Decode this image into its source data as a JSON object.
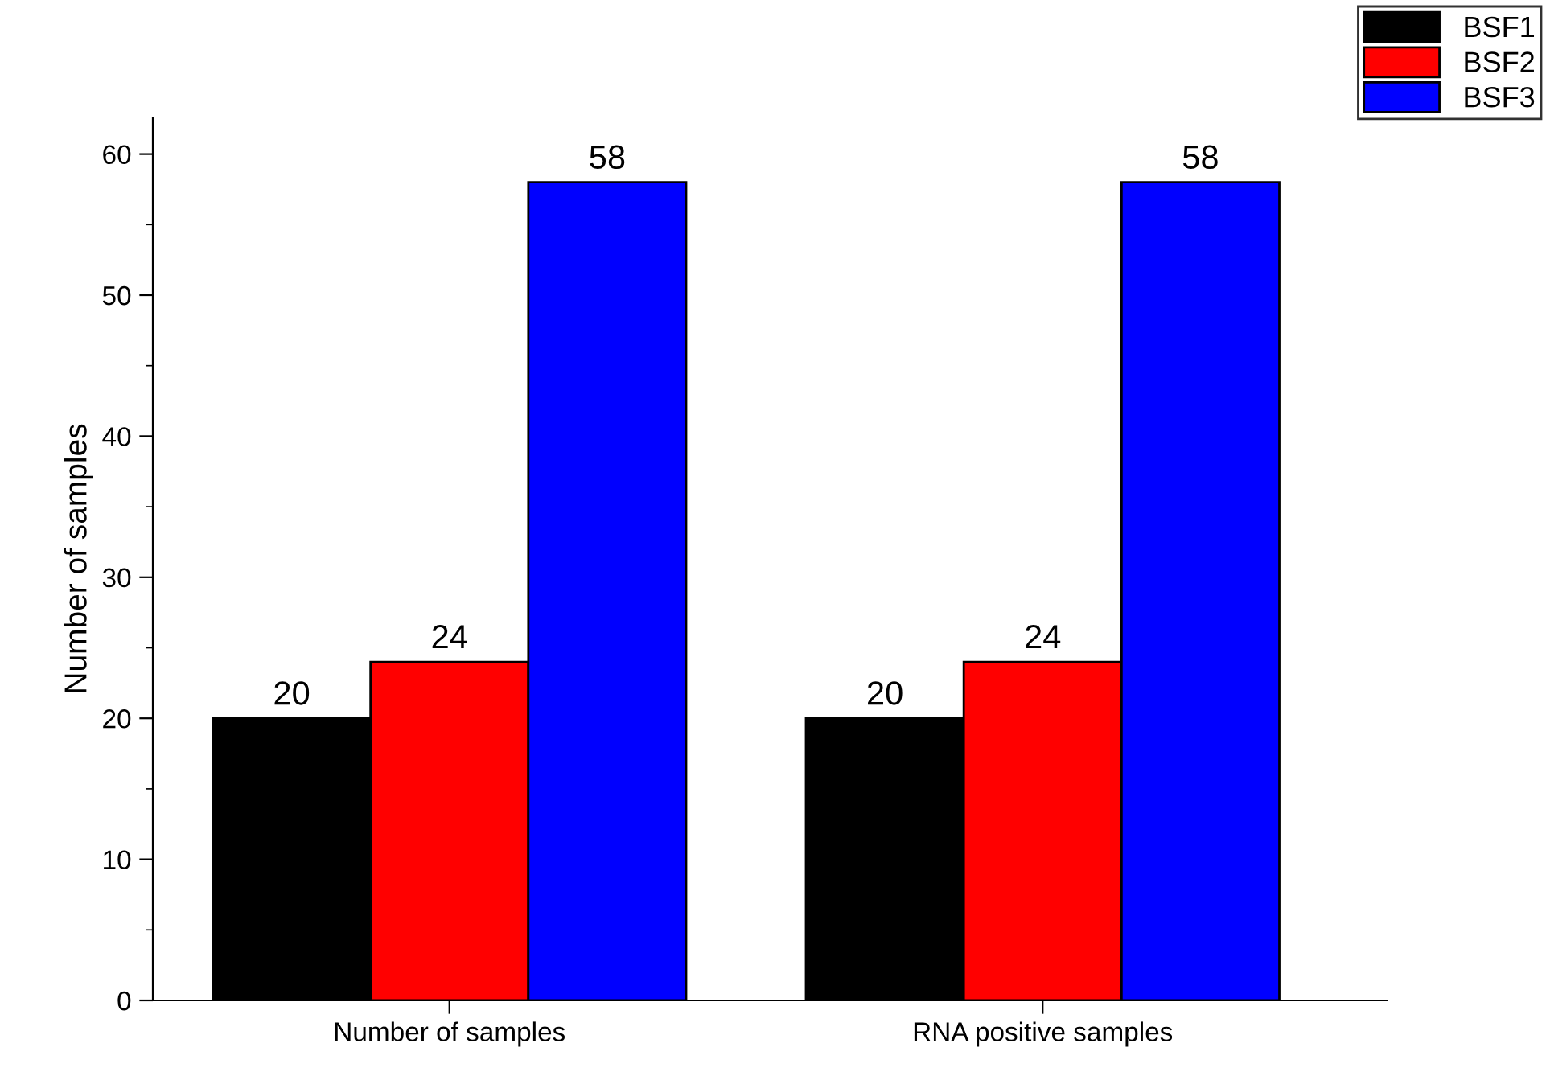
{
  "chart_data": {
    "type": "bar",
    "ylabel": "Number of samples",
    "categories": [
      "Number of samples",
      "RNA positive samples"
    ],
    "series": [
      {
        "name": "BSF1",
        "color": "#000000",
        "values": [
          20,
          20
        ]
      },
      {
        "name": "BSF2",
        "color": "#ff0000",
        "values": [
          24,
          24
        ]
      },
      {
        "name": "BSF3",
        "color": "#0000ff",
        "values": [
          58,
          58
        ]
      }
    ],
    "ylim": [
      0,
      62.6
    ],
    "yticks": [
      0,
      10,
      20,
      30,
      40,
      50,
      60
    ],
    "data_labels": true,
    "legend": "top right",
    "grid": false
  }
}
